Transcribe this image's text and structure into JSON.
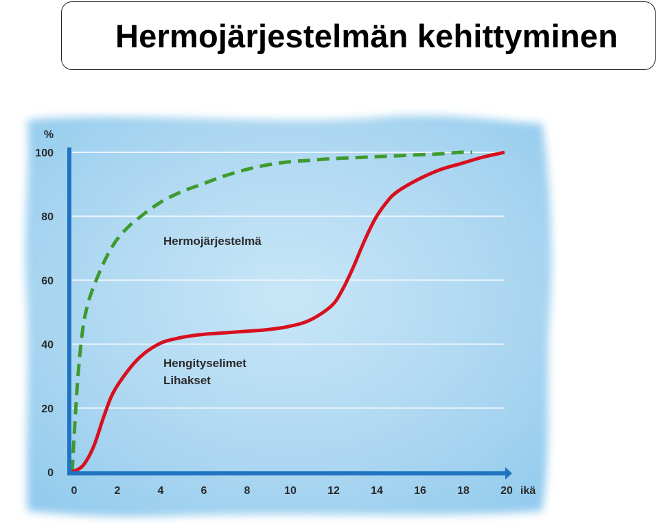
{
  "title": "Hermojärjestelmän kehittyminen",
  "chart_data": {
    "type": "line",
    "y_unit_label": "%",
    "xlabel": "ikä",
    "xlim": [
      0,
      20
    ],
    "ylim": [
      0,
      100
    ],
    "x_ticks": [
      "0",
      "2",
      "4",
      "6",
      "8",
      "10",
      "12",
      "14",
      "16",
      "18",
      "20"
    ],
    "y_ticks": [
      "0",
      "20",
      "40",
      "60",
      "80",
      "100"
    ],
    "grid": true,
    "colors": {
      "axis": "#1f73c0",
      "grid": "#eaf4fb",
      "background": "#aed8f2"
    },
    "series": [
      {
        "name": "Hermojärjestelmä",
        "color": "#3f9a2e",
        "style": "dashed",
        "x": [
          0,
          0.25,
          0.5,
          0.75,
          1,
          1.5,
          2,
          2.5,
          3,
          4,
          5,
          6,
          7,
          8,
          9,
          10,
          11,
          12,
          13,
          14,
          15,
          16,
          17,
          18,
          18.5
        ],
        "y": [
          0,
          28,
          45,
          53,
          58,
          66,
          72,
          76,
          79,
          84,
          87.5,
          90,
          92.5,
          94.5,
          96,
          97,
          97.5,
          98,
          98.3,
          98.6,
          98.9,
          99.2,
          99.5,
          100,
          100
        ]
      },
      {
        "name": "Hengityselimet\nLihakset",
        "label_lines": [
          "Hengityselimet",
          "Lihakset"
        ],
        "color": "#d8101e",
        "style": "solid",
        "x": [
          0,
          0.5,
          1,
          1.5,
          2,
          3,
          4,
          5,
          6,
          7,
          8,
          9,
          10,
          11,
          12,
          12.5,
          13,
          13.5,
          14,
          14.5,
          15,
          16,
          17,
          18,
          19,
          20
        ],
        "y": [
          0,
          2,
          8,
          18,
          26,
          35,
          40,
          42,
          43,
          43.5,
          44,
          44.5,
          45.5,
          47.5,
          52,
          57,
          64,
          72,
          79,
          84,
          87.5,
          91.5,
          94.5,
          96.5,
          98.5,
          100
        ]
      }
    ]
  }
}
